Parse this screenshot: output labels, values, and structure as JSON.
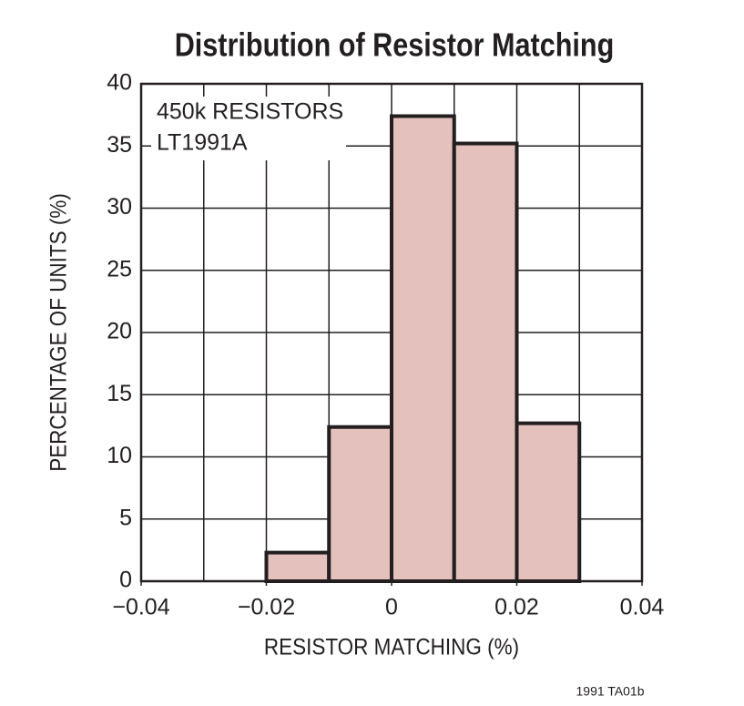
{
  "chart_data": {
    "type": "histogram",
    "title": "Distribution of Resistor Matching",
    "xlabel": "RESISTOR MATCHING (%)",
    "ylabel": "PERCENTAGE OF UNITS (%)",
    "annotations": [
      "450k RESISTORS",
      "LT1991A"
    ],
    "footnote": "1991 TA01b",
    "bins": [
      -0.04,
      -0.03,
      -0.02,
      -0.01,
      0,
      0.01,
      0.02,
      0.03
    ],
    "values": [
      0,
      0,
      2.3,
      12.4,
      37.4,
      35.2,
      12.7
    ],
    "color": "#e4c1bc",
    "edgecolor": "#231f20",
    "xlim": [
      -0.04,
      0.04
    ],
    "ylim": [
      0,
      40
    ],
    "xticks": [
      {
        "value": -0.04,
        "label": "−0.04"
      },
      {
        "value": -0.02,
        "label": "−0.02"
      },
      0,
      0.02,
      0.04
    ],
    "yticks": [
      0,
      5,
      10,
      15,
      20,
      25,
      30,
      35,
      40
    ],
    "grid": true
  }
}
